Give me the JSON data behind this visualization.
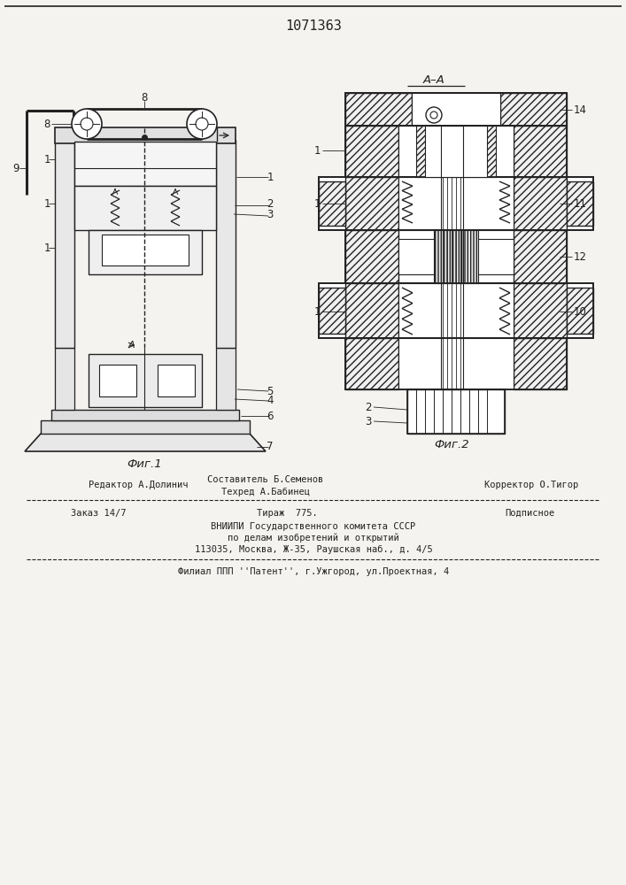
{
  "patent_number": "1071363",
  "fig1_caption": "Фиг.1",
  "fig2_caption": "Фиг.2",
  "bg_color": "#f5f3f0",
  "lc": "#222222",
  "footer_editor": "Редактор А.Долинич",
  "footer_comp1": "Составитель Б.Семенов",
  "footer_comp2": "Техред А.Бабинец",
  "footer_corr": "Корректор О.Тигор",
  "footer_order": "Заказ 14/7",
  "footer_circ": "Тираж  775.",
  "footer_sub": "Подписное",
  "footer_vn": "ВНИИПИ Государственного комитета СССР",
  "footer_pd": "по делам изобретений и открытий",
  "footer_addr": "113035, Москва, Ж-35, Раушская наб., д. 4/5",
  "footer_fil": "Филиал ППП ''Патент'', г.Ужгород, ул.Проектная, 4"
}
